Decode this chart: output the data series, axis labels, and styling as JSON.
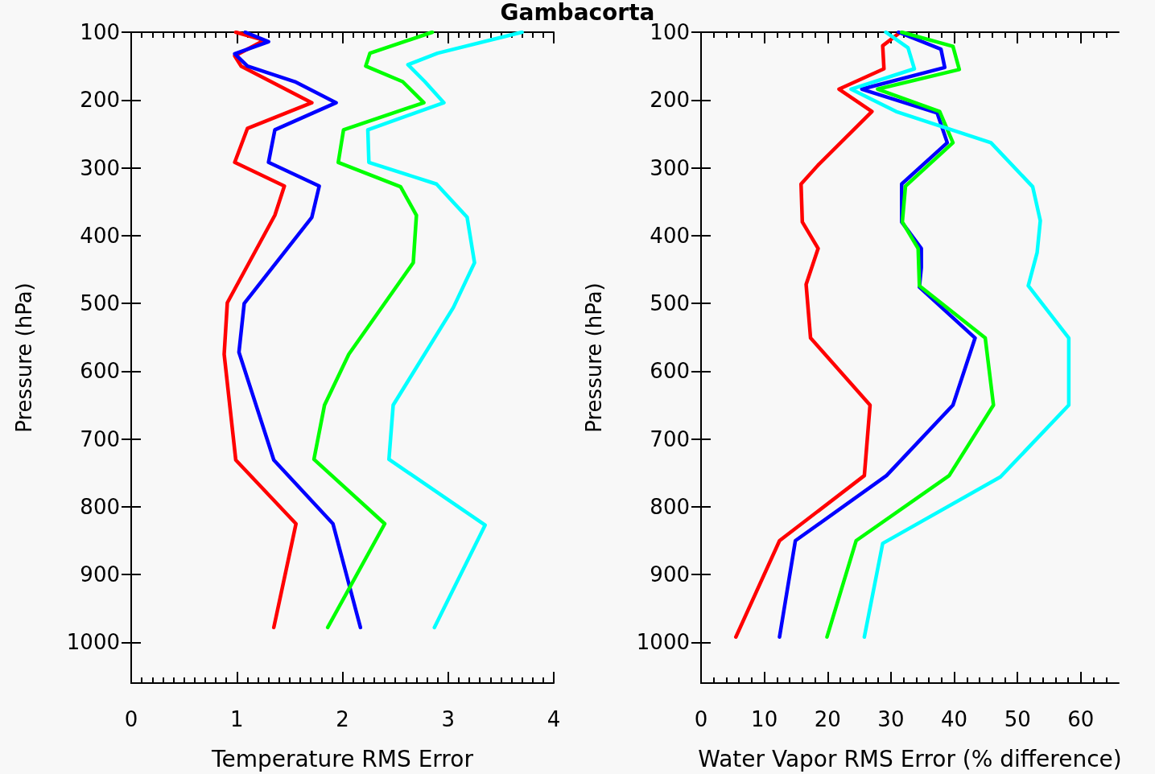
{
  "chart_data": [
    {
      "type": "line",
      "title": "Gambacorta",
      "xlabel": "Temperature RMS Error",
      "ylabel": "Pressure (hPa)",
      "xlim": [
        0,
        4
      ],
      "xticks": [
        0,
        1,
        2,
        3,
        4
      ],
      "ylim": [
        1060,
        100
      ],
      "yticks": [
        100,
        200,
        300,
        400,
        500,
        600,
        700,
        800,
        900,
        1000
      ],
      "grid": false,
      "marker": "none",
      "line_style": "solid",
      "series": [
        {
          "color": "#ff0000",
          "x": [
            0.99,
            1.26,
            0.98,
            1.04,
            1.71,
            1.1,
            0.98,
            1.45,
            1.36,
            0.91,
            0.88,
            0.99,
            1.56,
            1.35
          ],
          "values": [
            100,
            112,
            135,
            150,
            204,
            242,
            292,
            327,
            370,
            499,
            575,
            731,
            825,
            978
          ]
        },
        {
          "color": "#0000ff",
          "x": [
            1.08,
            1.3,
            0.98,
            1.1,
            1.55,
            1.94,
            1.36,
            1.3,
            1.78,
            1.71,
            1.07,
            1.02,
            1.35,
            1.91,
            2.17
          ],
          "values": [
            100,
            114,
            132,
            150,
            173,
            204,
            244,
            292,
            327,
            373,
            500,
            572,
            731,
            825,
            978
          ]
        },
        {
          "color": "#00ff00",
          "x": [
            2.85,
            2.26,
            2.22,
            2.57,
            2.77,
            2.01,
            1.96,
            2.55,
            2.7,
            2.67,
            2.06,
            1.83,
            1.73,
            2.4,
            1.86
          ],
          "values": [
            100,
            131,
            150,
            173,
            204,
            244,
            292,
            328,
            370,
            440,
            575,
            650,
            730,
            825,
            978
          ]
        },
        {
          "color": "#00ffff",
          "x": [
            3.7,
            2.9,
            2.62,
            2.78,
            2.96,
            2.24,
            2.25,
            2.89,
            3.18,
            3.25,
            3.05,
            2.48,
            2.44,
            3.35,
            2.87
          ],
          "values": [
            100,
            131,
            148,
            173,
            204,
            244,
            292,
            324,
            373,
            440,
            506,
            650,
            730,
            827,
            978
          ]
        }
      ]
    },
    {
      "type": "line",
      "xlabel": "Water Vapor RMS Error (% difference)",
      "ylabel": "Pressure (hPa)",
      "xlim": [
        0,
        66
      ],
      "xticks": [
        0,
        10,
        20,
        30,
        40,
        50,
        60
      ],
      "ylim": [
        1060,
        100
      ],
      "yticks": [
        100,
        200,
        300,
        400,
        500,
        600,
        700,
        800,
        900,
        1000
      ],
      "grid": false,
      "marker": "none",
      "line_style": "solid",
      "series": [
        {
          "color": "#ff0000",
          "x": [
            31.2,
            28.7,
            28.9,
            21.8,
            27.0,
            18.5,
            15.8,
            16.0,
            18.5,
            16.6,
            17.3,
            26.7,
            25.8,
            12.4,
            5.5
          ],
          "values": [
            102,
            120,
            154,
            184,
            217,
            296,
            324,
            380,
            419,
            472,
            551,
            650,
            754,
            850,
            992
          ]
        },
        {
          "color": "#0000ff",
          "x": [
            31.2,
            37.9,
            38.5,
            25.4,
            37.3,
            38.9,
            31.7,
            31.7,
            34.8,
            34.8,
            34.5,
            43.3,
            39.8,
            29.3,
            14.9,
            12.4
          ],
          "values": [
            100,
            125,
            152,
            184,
            219,
            263,
            324,
            380,
            419,
            447,
            476,
            551,
            650,
            754,
            850,
            992
          ]
        },
        {
          "color": "#00ff00",
          "x": [
            31.7,
            39.8,
            40.8,
            27.9,
            37.7,
            39.8,
            32.3,
            31.8,
            34.3,
            34.5,
            44.9,
            46.2,
            39.2,
            24.5,
            19.9
          ],
          "values": [
            100,
            121,
            155,
            184,
            217,
            263,
            327,
            380,
            419,
            474,
            551,
            650,
            754,
            850,
            992
          ]
        },
        {
          "color": "#00ffff",
          "x": [
            29.2,
            32.7,
            33.7,
            23.7,
            30.8,
            45.8,
            52.4,
            53.6,
            53.1,
            51.7,
            58.1,
            58.1,
            47.3,
            28.7,
            25.8
          ],
          "values": [
            100,
            123,
            154,
            184,
            217,
            263,
            328,
            378,
            425,
            474,
            551,
            650,
            756,
            854,
            992
          ]
        }
      ]
    }
  ]
}
